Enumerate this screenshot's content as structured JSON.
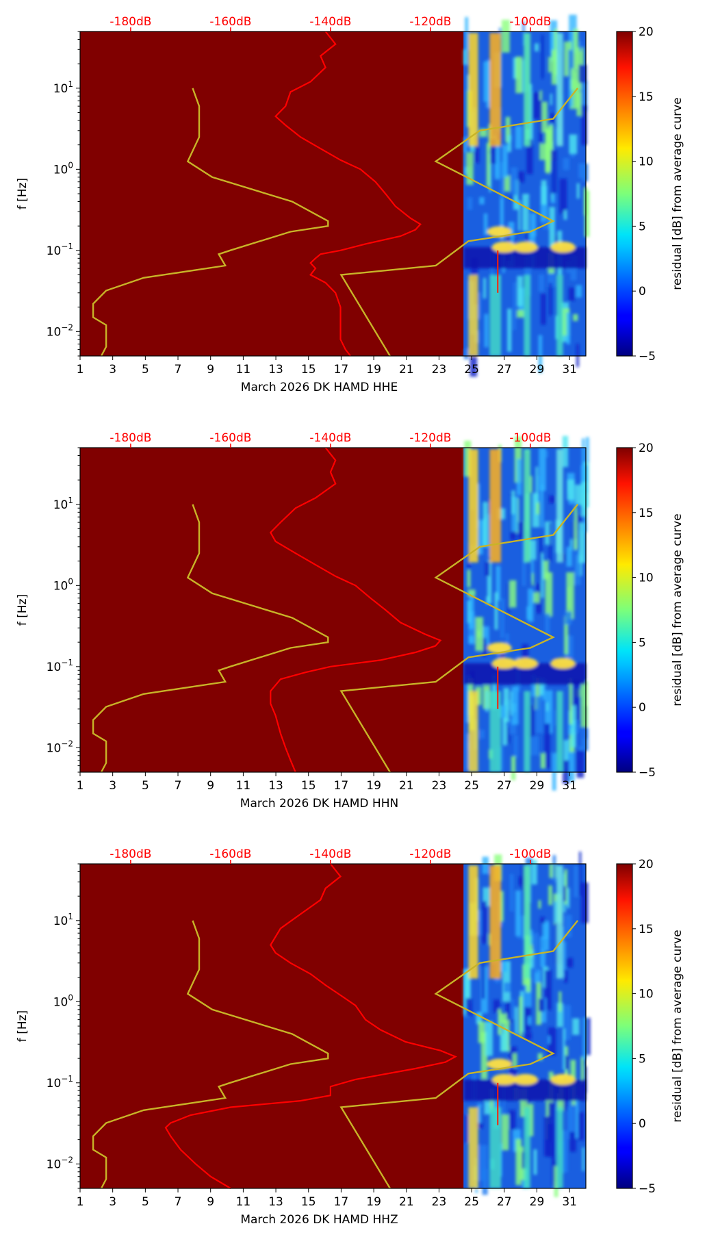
{
  "chart_data": [
    {
      "type": "heatmap",
      "panel": "HHE",
      "xlabel": "March 2026 DK HAMD  HHE",
      "ylabel": "f [Hz]",
      "x_ticks": [
        1,
        3,
        5,
        7,
        9,
        11,
        13,
        15,
        17,
        19,
        21,
        23,
        25,
        27,
        29,
        31
      ],
      "xlim": [
        1,
        32
      ],
      "ylim": [
        0.005,
        50
      ],
      "y_scale": "log",
      "y_ticks": [
        "10^-2",
        "10^-1",
        "10^0",
        "10^1"
      ],
      "top_axis_labels": [
        "-180dB",
        "-160dB",
        "-140dB",
        "-120dB",
        "-100dB"
      ],
      "top_axis_values_db": [
        -180,
        -160,
        -140,
        -120,
        -100
      ],
      "data_start_day": 24.5,
      "no_data_fill": "#800000",
      "colorbar": {
        "label": "residual [dB] from average curve",
        "ticks": [
          -5,
          0,
          5,
          10,
          15,
          20
        ],
        "range": [
          -5,
          20
        ]
      },
      "noise_model_curve": {
        "color": "#c8b428",
        "points_day_hz": [
          [
            7.9,
            10
          ],
          [
            8.3,
            6
          ],
          [
            8.3,
            2.5
          ],
          [
            7.6,
            1.25
          ],
          [
            9.1,
            0.8
          ],
          [
            14.0,
            0.4
          ],
          [
            16.2,
            0.23
          ],
          [
            16.2,
            0.2
          ],
          [
            13.9,
            0.17
          ],
          [
            10.2,
            0.1
          ],
          [
            9.5,
            0.09
          ],
          [
            9.9,
            0.065
          ],
          [
            4.9,
            0.046
          ],
          [
            2.6,
            0.032
          ],
          [
            1.8,
            0.022
          ],
          [
            1.8,
            0.015
          ],
          [
            2.6,
            0.012
          ],
          [
            2.6,
            0.0065
          ],
          [
            2.3,
            0.005
          ]
        ]
      },
      "secondary_noise_model_curve": {
        "color": "#c8b428",
        "points_day_hz": [
          [
            31.5,
            10
          ],
          [
            30.0,
            4.2
          ],
          [
            25.5,
            3.0
          ],
          [
            22.8,
            1.25
          ],
          [
            30.0,
            0.23
          ],
          [
            28.6,
            0.17
          ],
          [
            24.8,
            0.13
          ],
          [
            22.8,
            0.065
          ],
          [
            17.0,
            0.05
          ],
          [
            20.0,
            0.005
          ]
        ]
      },
      "average_psd_curve": {
        "color": "#ff0000",
        "points_db_hz": [
          [
            -141,
            50
          ],
          [
            -139,
            35
          ],
          [
            -142,
            25
          ],
          [
            -141,
            18
          ],
          [
            -144,
            12
          ],
          [
            -148,
            9
          ],
          [
            -149,
            6
          ],
          [
            -151,
            4.5
          ],
          [
            -149,
            3.5
          ],
          [
            -146,
            2.5
          ],
          [
            -142,
            1.8
          ],
          [
            -138,
            1.3
          ],
          [
            -134,
            1.0
          ],
          [
            -131,
            0.7
          ],
          [
            -129,
            0.5
          ],
          [
            -127,
            0.35
          ],
          [
            -124,
            0.25
          ],
          [
            -122,
            0.21
          ],
          [
            -123,
            0.18
          ],
          [
            -126,
            0.15
          ],
          [
            -133,
            0.12
          ],
          [
            -138,
            0.1
          ],
          [
            -142,
            0.09
          ],
          [
            -143,
            0.08
          ],
          [
            -144,
            0.07
          ],
          [
            -143,
            0.06
          ],
          [
            -144,
            0.05
          ],
          [
            -141,
            0.04
          ],
          [
            -139,
            0.03
          ],
          [
            -138,
            0.02
          ],
          [
            -138,
            0.012
          ],
          [
            -138,
            0.008
          ],
          [
            -137,
            0.006
          ],
          [
            -136,
            0.005
          ]
        ]
      }
    },
    {
      "type": "heatmap",
      "panel": "HHN",
      "xlabel": "March 2026 DK HAMD  HHN",
      "ylabel": "f [Hz]",
      "x_ticks": [
        1,
        3,
        5,
        7,
        9,
        11,
        13,
        15,
        17,
        19,
        21,
        23,
        25,
        27,
        29,
        31
      ],
      "xlim": [
        1,
        32
      ],
      "ylim": [
        0.005,
        50
      ],
      "y_scale": "log",
      "y_ticks": [
        "10^-2",
        "10^-1",
        "10^0",
        "10^1"
      ],
      "top_axis_labels": [
        "-180dB",
        "-160dB",
        "-140dB",
        "-120dB",
        "-100dB"
      ],
      "top_axis_values_db": [
        -180,
        -160,
        -140,
        -120,
        -100
      ],
      "data_start_day": 24.5,
      "no_data_fill": "#800000",
      "colorbar": {
        "label": "residual [dB] from average curve",
        "ticks": [
          -5,
          0,
          5,
          10,
          15,
          20
        ],
        "range": [
          -5,
          20
        ]
      },
      "noise_model_curve": {
        "color": "#c8b428",
        "points_day_hz": [
          [
            7.9,
            10
          ],
          [
            8.3,
            6
          ],
          [
            8.3,
            2.5
          ],
          [
            7.6,
            1.25
          ],
          [
            9.1,
            0.8
          ],
          [
            14.0,
            0.4
          ],
          [
            16.2,
            0.23
          ],
          [
            16.2,
            0.2
          ],
          [
            13.9,
            0.17
          ],
          [
            10.2,
            0.1
          ],
          [
            9.5,
            0.09
          ],
          [
            9.9,
            0.065
          ],
          [
            4.9,
            0.046
          ],
          [
            2.6,
            0.032
          ],
          [
            1.8,
            0.022
          ],
          [
            1.8,
            0.015
          ],
          [
            2.6,
            0.012
          ],
          [
            2.6,
            0.0065
          ],
          [
            2.3,
            0.005
          ]
        ]
      },
      "secondary_noise_model_curve": {
        "color": "#c8b428",
        "points_day_hz": [
          [
            31.5,
            10
          ],
          [
            30.0,
            4.2
          ],
          [
            25.5,
            3.0
          ],
          [
            22.8,
            1.25
          ],
          [
            30.0,
            0.23
          ],
          [
            28.6,
            0.17
          ],
          [
            24.8,
            0.13
          ],
          [
            22.8,
            0.065
          ],
          [
            17.0,
            0.05
          ],
          [
            20.0,
            0.005
          ]
        ]
      },
      "average_psd_curve": {
        "color": "#ff0000",
        "points_db_hz": [
          [
            -141,
            50
          ],
          [
            -139,
            35
          ],
          [
            -140,
            25
          ],
          [
            -139,
            18
          ],
          [
            -143,
            12
          ],
          [
            -147,
            9
          ],
          [
            -150,
            6
          ],
          [
            -152,
            4.5
          ],
          [
            -151,
            3.5
          ],
          [
            -147,
            2.5
          ],
          [
            -143,
            1.8
          ],
          [
            -139,
            1.3
          ],
          [
            -135,
            1.0
          ],
          [
            -132,
            0.7
          ],
          [
            -129,
            0.5
          ],
          [
            -126,
            0.35
          ],
          [
            -121,
            0.25
          ],
          [
            -118,
            0.21
          ],
          [
            -119,
            0.18
          ],
          [
            -123,
            0.15
          ],
          [
            -130,
            0.12
          ],
          [
            -140,
            0.1
          ],
          [
            -145,
            0.085
          ],
          [
            -150,
            0.07
          ],
          [
            -152,
            0.05
          ],
          [
            -152,
            0.035
          ],
          [
            -151,
            0.025
          ],
          [
            -150,
            0.015
          ],
          [
            -149,
            0.01
          ],
          [
            -148,
            0.007
          ],
          [
            -147,
            0.005
          ]
        ]
      }
    },
    {
      "type": "heatmap",
      "panel": "HHZ",
      "xlabel": "March 2026 DK HAMD  HHZ",
      "ylabel": "f [Hz]",
      "x_ticks": [
        1,
        3,
        5,
        7,
        9,
        11,
        13,
        15,
        17,
        19,
        21,
        23,
        25,
        27,
        29,
        31
      ],
      "xlim": [
        1,
        32
      ],
      "ylim": [
        0.005,
        50
      ],
      "y_scale": "log",
      "y_ticks": [
        "10^-2",
        "10^-1",
        "10^0",
        "10^1"
      ],
      "top_axis_labels": [
        "-180dB",
        "-160dB",
        "-140dB",
        "-120dB",
        "-100dB"
      ],
      "top_axis_values_db": [
        -180,
        -160,
        -140,
        -120,
        -100
      ],
      "data_start_day": 24.5,
      "no_data_fill": "#800000",
      "colorbar": {
        "label": "residual [dB] from average curve",
        "ticks": [
          -5,
          0,
          5,
          10,
          15,
          20
        ],
        "range": [
          -5,
          20
        ]
      },
      "noise_model_curve": {
        "color": "#c8b428",
        "points_day_hz": [
          [
            7.9,
            10
          ],
          [
            8.3,
            6
          ],
          [
            8.3,
            2.5
          ],
          [
            7.6,
            1.25
          ],
          [
            9.1,
            0.8
          ],
          [
            14.0,
            0.4
          ],
          [
            16.2,
            0.23
          ],
          [
            16.2,
            0.2
          ],
          [
            13.9,
            0.17
          ],
          [
            10.2,
            0.1
          ],
          [
            9.5,
            0.09
          ],
          [
            9.9,
            0.065
          ],
          [
            4.9,
            0.046
          ],
          [
            2.6,
            0.032
          ],
          [
            1.8,
            0.022
          ],
          [
            1.8,
            0.015
          ],
          [
            2.6,
            0.012
          ],
          [
            2.6,
            0.0065
          ],
          [
            2.3,
            0.005
          ]
        ]
      },
      "secondary_noise_model_curve": {
        "color": "#c8b428",
        "points_day_hz": [
          [
            31.5,
            10
          ],
          [
            30.0,
            4.2
          ],
          [
            25.5,
            3.0
          ],
          [
            22.8,
            1.25
          ],
          [
            30.0,
            0.23
          ],
          [
            28.6,
            0.17
          ],
          [
            24.8,
            0.13
          ],
          [
            22.8,
            0.065
          ],
          [
            17.0,
            0.05
          ],
          [
            20.0,
            0.005
          ]
        ]
      },
      "average_psd_curve": {
        "color": "#ff0000",
        "points_db_hz": [
          [
            -140,
            50
          ],
          [
            -138,
            35
          ],
          [
            -141,
            25
          ],
          [
            -142,
            18
          ],
          [
            -146,
            12
          ],
          [
            -150,
            8
          ],
          [
            -152,
            5
          ],
          [
            -151,
            4
          ],
          [
            -148,
            3
          ],
          [
            -144,
            2.2
          ],
          [
            -141,
            1.6
          ],
          [
            -138,
            1.2
          ],
          [
            -135,
            0.9
          ],
          [
            -133,
            0.6
          ],
          [
            -130,
            0.45
          ],
          [
            -125,
            0.32
          ],
          [
            -118,
            0.25
          ],
          [
            -115,
            0.21
          ],
          [
            -117,
            0.18
          ],
          [
            -123,
            0.15
          ],
          [
            -135,
            0.11
          ],
          [
            -140,
            0.09
          ],
          [
            -140,
            0.07
          ],
          [
            -146,
            0.06
          ],
          [
            -160,
            0.05
          ],
          [
            -168,
            0.04
          ],
          [
            -172,
            0.032
          ],
          [
            -173,
            0.028
          ],
          [
            -172,
            0.022
          ],
          [
            -170,
            0.015
          ],
          [
            -167,
            0.01
          ],
          [
            -164,
            0.007
          ],
          [
            -160,
            0.005
          ]
        ]
      }
    }
  ]
}
